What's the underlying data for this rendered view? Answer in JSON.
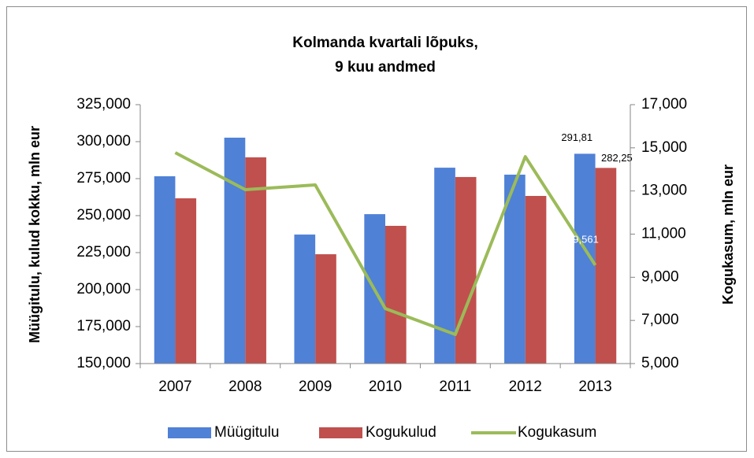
{
  "chart_data": {
    "type": "bar-line",
    "title": [
      "Kolmanda kvartali lõpuks,",
      "9 kuu andmed"
    ],
    "y_label": "Müügitulu, kulud kokku, mln eur",
    "y2_label": "Kogukasum, mln eur",
    "categories": [
      "2007",
      "2008",
      "2009",
      "2010",
      "2011",
      "2012",
      "2013"
    ],
    "series": [
      {
        "name": "Müügitulu",
        "type": "bar",
        "color": "#4f81d6",
        "values": [
          276.6,
          302.7,
          237.2,
          251.0,
          282.4,
          277.7,
          291.81
        ],
        "value_labels": [
          null,
          null,
          null,
          null,
          null,
          null,
          "291,81"
        ]
      },
      {
        "name": "Kogukulud",
        "type": "bar",
        "color": "#c0504d",
        "values": [
          261.7,
          289.4,
          223.9,
          243.1,
          276.1,
          263.3,
          282.25
        ],
        "value_labels": [
          null,
          null,
          null,
          null,
          null,
          null,
          "282,25"
        ]
      },
      {
        "name": "Kogukasum",
        "type": "line",
        "axis": "y2",
        "color": "#9bbb59",
        "values": [
          14.775,
          13.06,
          13.28,
          7.55,
          6.35,
          14.59,
          9.561
        ],
        "value_labels": [
          null,
          null,
          null,
          null,
          null,
          null,
          "9,561"
        ]
      }
    ],
    "ylim": [
      150,
      325
    ],
    "yticks": [
      {
        "value": 150,
        "label": "150,000"
      },
      {
        "value": 175,
        "label": "175,000"
      },
      {
        "value": 200,
        "label": "200,000"
      },
      {
        "value": 225,
        "label": "225,000"
      },
      {
        "value": 250,
        "label": "250,000"
      },
      {
        "value": 275,
        "label": "275,000"
      },
      {
        "value": 300,
        "label": "300,000"
      },
      {
        "value": 325,
        "label": "325,000"
      }
    ],
    "y2lim": [
      5,
      17
    ],
    "y2ticks": [
      {
        "value": 5,
        "label": "5,000"
      },
      {
        "value": 7,
        "label": "7,000"
      },
      {
        "value": 9,
        "label": "9,000"
      },
      {
        "value": 11,
        "label": "11,000"
      },
      {
        "value": 13,
        "label": "13,000"
      },
      {
        "value": 15,
        "label": "15,000"
      },
      {
        "value": 17,
        "label": "17,000"
      }
    ],
    "grid": false,
    "legend": "bottom"
  }
}
